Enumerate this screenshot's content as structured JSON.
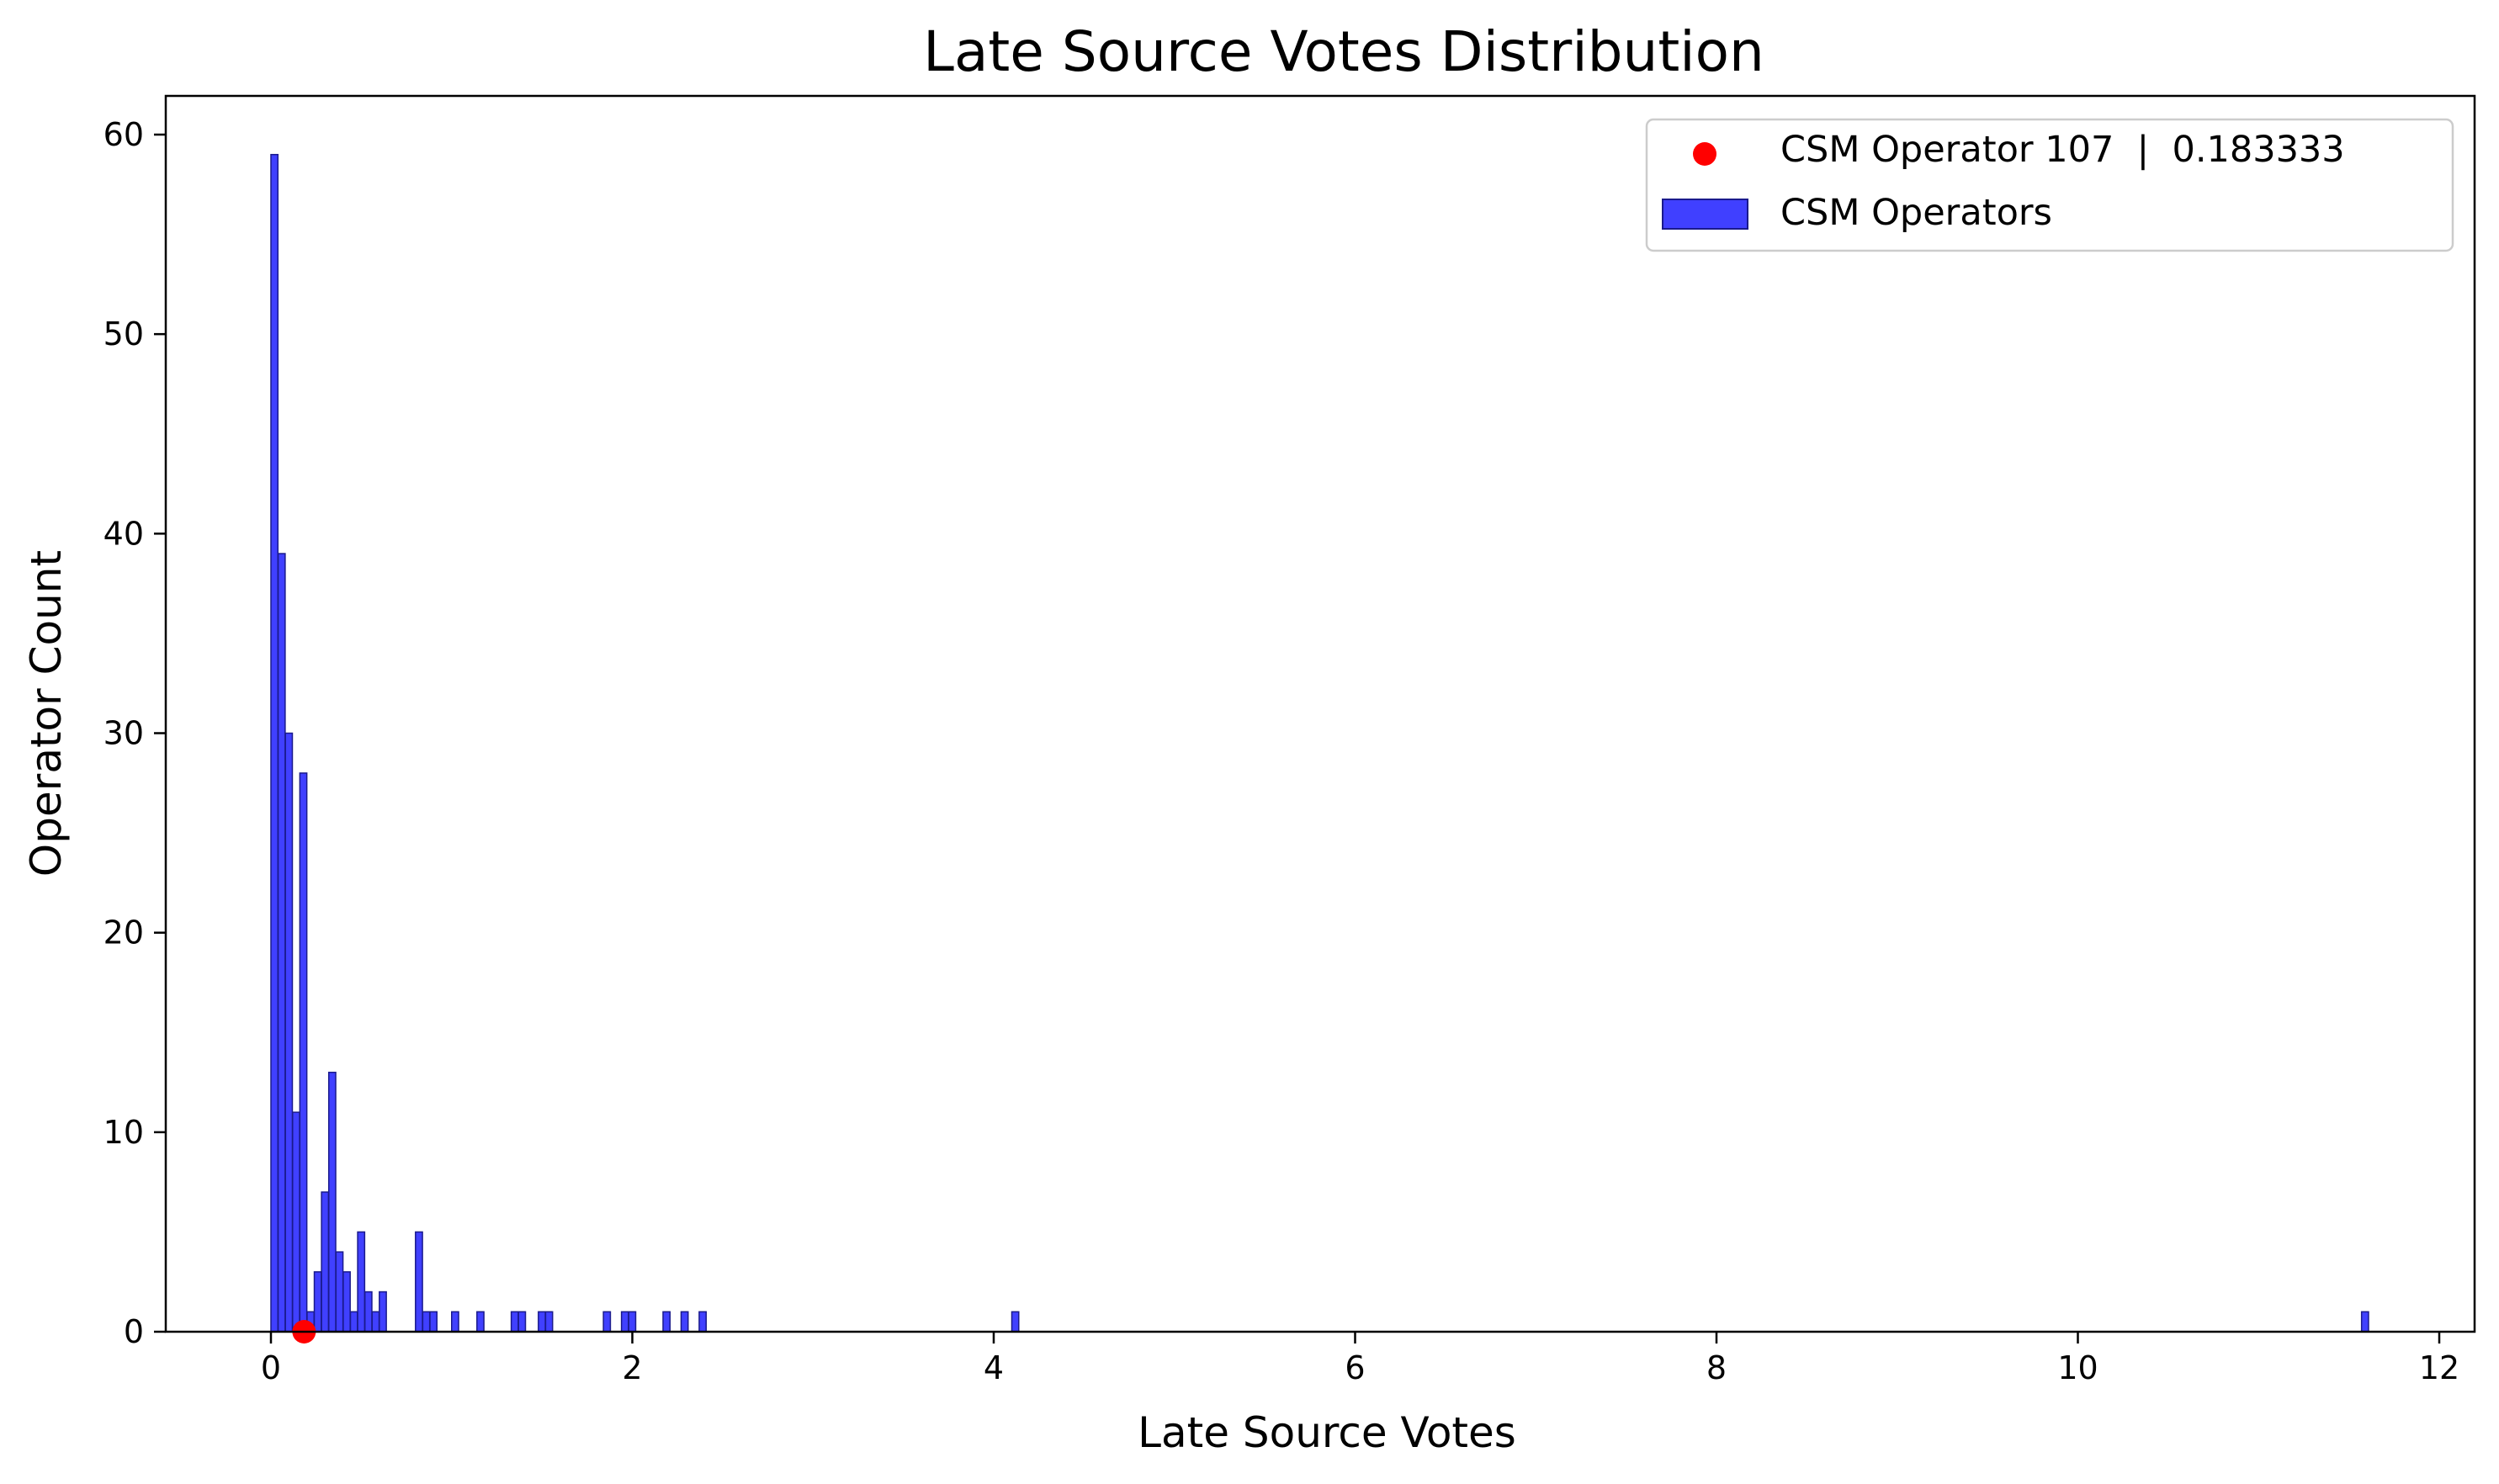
{
  "chart_data": {
    "type": "bar",
    "title": "Late Source Votes Distribution",
    "xlabel": "Late Source Votes",
    "ylabel": "Operator Count",
    "xlim": [
      -0.6,
      12.2
    ],
    "ylim": [
      0,
      62
    ],
    "xticks": [
      0,
      2,
      4,
      6,
      8,
      10,
      12
    ],
    "yticks": [
      0,
      10,
      20,
      30,
      40,
      50,
      60
    ],
    "bin_width": 0.0386,
    "bar_color": "#0000ff",
    "bar_edge_color": "#1a1a8c",
    "marker_color": "#ff0000",
    "legend_position": "top-right",
    "bins": [
      {
        "x": 0.0,
        "count": 59
      },
      {
        "x": 0.04,
        "count": 39
      },
      {
        "x": 0.08,
        "count": 30
      },
      {
        "x": 0.12,
        "count": 11
      },
      {
        "x": 0.16,
        "count": 28
      },
      {
        "x": 0.2,
        "count": 1
      },
      {
        "x": 0.24,
        "count": 3
      },
      {
        "x": 0.28,
        "count": 7
      },
      {
        "x": 0.32,
        "count": 13
      },
      {
        "x": 0.36,
        "count": 4
      },
      {
        "x": 0.4,
        "count": 3
      },
      {
        "x": 0.44,
        "count": 1
      },
      {
        "x": 0.48,
        "count": 5
      },
      {
        "x": 0.52,
        "count": 2
      },
      {
        "x": 0.56,
        "count": 1
      },
      {
        "x": 0.6,
        "count": 2
      },
      {
        "x": 0.8,
        "count": 5
      },
      {
        "x": 0.84,
        "count": 1
      },
      {
        "x": 0.88,
        "count": 1
      },
      {
        "x": 1.0,
        "count": 1
      },
      {
        "x": 1.14,
        "count": 1
      },
      {
        "x": 1.33,
        "count": 1
      },
      {
        "x": 1.37,
        "count": 1
      },
      {
        "x": 1.48,
        "count": 1
      },
      {
        "x": 1.52,
        "count": 1
      },
      {
        "x": 1.84,
        "count": 1
      },
      {
        "x": 1.94,
        "count": 1
      },
      {
        "x": 1.98,
        "count": 1
      },
      {
        "x": 2.17,
        "count": 1
      },
      {
        "x": 2.27,
        "count": 1
      },
      {
        "x": 2.37,
        "count": 1
      },
      {
        "x": 4.1,
        "count": 1
      },
      {
        "x": 11.57,
        "count": 1
      }
    ],
    "highlight": {
      "x": 0.183333,
      "y": 0
    },
    "legend": [
      {
        "label": "CSM Operator 107  |  0.183333",
        "kind": "marker"
      },
      {
        "label": "CSM Operators",
        "kind": "patch"
      }
    ]
  }
}
